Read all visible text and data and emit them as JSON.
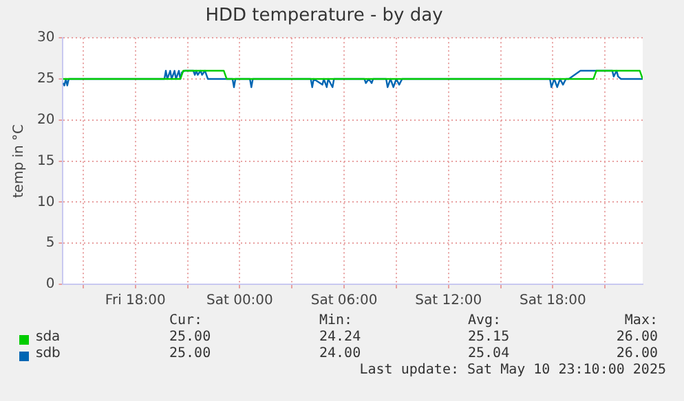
{
  "chart_data": {
    "type": "line",
    "title": "HDD temperature - by day",
    "ylabel": "temp in °C",
    "xlim": [
      "2025-05-09T13:50",
      "2025-05-10T23:10"
    ],
    "xticks": [
      {
        "value": "2025-05-09T15:00",
        "label": null
      },
      {
        "value": "2025-05-09T18:00",
        "label": "Fri 18:00"
      },
      {
        "value": "2025-05-09T21:00",
        "label": null
      },
      {
        "value": "2025-05-10T00:00",
        "label": "Sat 00:00"
      },
      {
        "value": "2025-05-10T03:00",
        "label": null
      },
      {
        "value": "2025-05-10T06:00",
        "label": "Sat 06:00"
      },
      {
        "value": "2025-05-10T09:00",
        "label": null
      },
      {
        "value": "2025-05-10T12:00",
        "label": "Sat 12:00"
      },
      {
        "value": "2025-05-10T15:00",
        "label": null
      },
      {
        "value": "2025-05-10T18:00",
        "label": "Sat 18:00"
      },
      {
        "value": "2025-05-10T21:00",
        "label": null
      }
    ],
    "ylim": [
      0,
      30
    ],
    "yticks": [
      0,
      5,
      10,
      15,
      20,
      25,
      30
    ],
    "grid": true,
    "legend": "bottom",
    "marker": "none",
    "line_style": "solid",
    "series": [
      {
        "name": "sda",
        "color": "#00cc00",
        "x": [
          "2025-05-09T13:50",
          "2025-05-09T20:35",
          "2025-05-09T20:45",
          "2025-05-09T23:05",
          "2025-05-09T23:15",
          "2025-05-10T20:20",
          "2025-05-10T20:30",
          "2025-05-10T23:00",
          "2025-05-10T23:10"
        ],
        "values": [
          25,
          25,
          26,
          26,
          25,
          25,
          26,
          26,
          25
        ]
      },
      {
        "name": "sdb",
        "color": "#0066b3",
        "x": [
          "2025-05-09T13:50",
          "2025-05-09T13:55",
          "2025-05-09T14:00",
          "2025-05-09T14:05",
          "2025-05-09T14:10",
          "2025-05-09T14:20",
          "2025-05-09T19:40",
          "2025-05-09T19:45",
          "2025-05-09T19:50",
          "2025-05-09T20:00",
          "2025-05-09T20:05",
          "2025-05-09T20:15",
          "2025-05-09T20:20",
          "2025-05-09T20:30",
          "2025-05-09T20:35",
          "2025-05-09T20:40",
          "2025-05-09T20:50",
          "2025-05-09T21:20",
          "2025-05-09T21:25",
          "2025-05-09T21:30",
          "2025-05-09T21:35",
          "2025-05-09T21:45",
          "2025-05-09T21:50",
          "2025-05-09T22:00",
          "2025-05-09T22:10",
          "2025-05-09T23:35",
          "2025-05-09T23:40",
          "2025-05-09T23:45",
          "2025-05-10T00:35",
          "2025-05-10T00:40",
          "2025-05-10T00:45",
          "2025-05-10T04:05",
          "2025-05-10T04:10",
          "2025-05-10T04:15",
          "2025-05-10T04:45",
          "2025-05-10T04:50",
          "2025-05-10T05:00",
          "2025-05-10T05:05",
          "2025-05-10T05:20",
          "2025-05-10T05:25",
          "2025-05-10T07:10",
          "2025-05-10T07:15",
          "2025-05-10T07:25",
          "2025-05-10T07:35",
          "2025-05-10T07:40",
          "2025-05-10T08:25",
          "2025-05-10T08:30",
          "2025-05-10T08:40",
          "2025-05-10T08:50",
          "2025-05-10T09:00",
          "2025-05-10T09:10",
          "2025-05-10T09:20",
          "2025-05-10T17:50",
          "2025-05-10T17:55",
          "2025-05-10T18:05",
          "2025-05-10T18:15",
          "2025-05-10T18:25",
          "2025-05-10T18:35",
          "2025-05-10T18:45",
          "2025-05-10T18:55",
          "2025-05-10T19:35",
          "2025-05-10T21:25",
          "2025-05-10T21:30",
          "2025-05-10T21:40",
          "2025-05-10T21:45",
          "2025-05-10T21:55",
          "2025-05-10T23:10"
        ],
        "values": [
          24.5,
          24.2,
          25,
          24.2,
          25,
          25,
          25,
          26,
          25,
          26,
          25,
          26,
          25,
          26,
          25,
          25.8,
          26,
          26,
          25.5,
          26,
          25.5,
          26,
          25.5,
          26,
          25,
          25,
          24,
          25,
          25,
          24,
          25,
          25,
          24,
          25,
          24.3,
          25,
          24,
          25,
          24,
          25,
          25,
          24.5,
          25,
          24.5,
          25,
          25,
          24,
          25,
          24,
          25,
          24.3,
          25,
          25,
          24,
          25,
          24,
          25,
          24.3,
          25,
          25,
          26,
          26,
          25.3,
          26,
          25.3,
          25,
          25
        ]
      }
    ],
    "annotations": [
      "Cur:",
      "Min:",
      "Avg:",
      "Max:",
      "25.00",
      "24.24",
      "25.15",
      "26.00",
      "25.00",
      "24.00",
      "25.04",
      "26.00",
      "Last update: Sat May 10 23:10:00 2025"
    ]
  }
}
